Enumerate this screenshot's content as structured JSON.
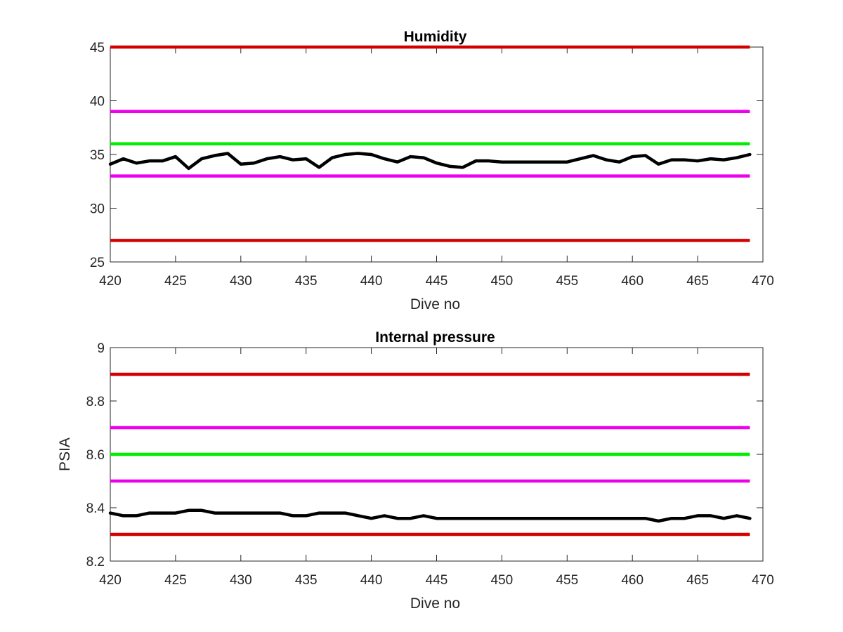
{
  "chart_data": [
    {
      "type": "line",
      "title": "Humidity",
      "xlabel": "Dive no",
      "ylabel": "",
      "xlim": [
        420,
        470
      ],
      "ylim": [
        25,
        45
      ],
      "xticks": [
        420,
        425,
        430,
        435,
        440,
        445,
        450,
        455,
        460,
        465,
        470
      ],
      "yticks": [
        25,
        30,
        35,
        40,
        45
      ],
      "grid": false,
      "legend": "none",
      "reference_lines": [
        {
          "y": 45,
          "x": [
            420,
            469
          ],
          "color": "#d40000"
        },
        {
          "y": 39,
          "x": [
            420,
            469
          ],
          "color": "#ee00ee"
        },
        {
          "y": 36,
          "x": [
            420,
            469
          ],
          "color": "#00ee00"
        },
        {
          "y": 33,
          "x": [
            420,
            469
          ],
          "color": "#ee00ee"
        },
        {
          "y": 27,
          "x": [
            420,
            469
          ],
          "color": "#d40000"
        }
      ],
      "series": [
        {
          "color": "#000000",
          "x": [
            420,
            421,
            422,
            423,
            424,
            425,
            426,
            427,
            428,
            429,
            430,
            431,
            432,
            433,
            434,
            435,
            436,
            437,
            438,
            439,
            440,
            441,
            442,
            443,
            444,
            445,
            446,
            447,
            448,
            449,
            450,
            451,
            452,
            453,
            454,
            455,
            456,
            457,
            458,
            459,
            460,
            461,
            462,
            463,
            464,
            465,
            466,
            467,
            468,
            469
          ],
          "values": [
            34.1,
            34.6,
            34.2,
            34.4,
            34.4,
            34.8,
            33.7,
            34.6,
            34.9,
            35.1,
            34.1,
            34.2,
            34.6,
            34.8,
            34.5,
            34.6,
            33.8,
            34.7,
            35.0,
            35.1,
            35.0,
            34.6,
            34.3,
            34.8,
            34.7,
            34.2,
            33.9,
            33.8,
            34.4,
            34.4,
            34.3,
            34.3,
            34.3,
            34.3,
            34.3,
            34.3,
            34.6,
            34.9,
            34.5,
            34.3,
            34.8,
            34.9,
            34.1,
            34.5,
            34.5,
            34.4,
            34.6,
            34.5,
            34.7,
            35.0
          ]
        }
      ]
    },
    {
      "type": "line",
      "title": "Internal pressure",
      "xlabel": "Dive no",
      "ylabel": "PSIA",
      "xlim": [
        420,
        470
      ],
      "ylim": [
        8.2,
        9
      ],
      "xticks": [
        420,
        425,
        430,
        435,
        440,
        445,
        450,
        455,
        460,
        465,
        470
      ],
      "yticks": [
        "8.2",
        "8.4",
        "8.6",
        "8.8",
        "9"
      ],
      "grid": false,
      "legend": "none",
      "reference_lines": [
        {
          "y": 8.9,
          "x": [
            420,
            469
          ],
          "color": "#d40000"
        },
        {
          "y": 8.7,
          "x": [
            420,
            469
          ],
          "color": "#ee00ee"
        },
        {
          "y": 8.6,
          "x": [
            420,
            469
          ],
          "color": "#00ee00"
        },
        {
          "y": 8.5,
          "x": [
            420,
            469
          ],
          "color": "#ee00ee"
        },
        {
          "y": 8.3,
          "x": [
            420,
            469
          ],
          "color": "#d40000"
        }
      ],
      "series": [
        {
          "color": "#000000",
          "x": [
            420,
            421,
            422,
            423,
            424,
            425,
            426,
            427,
            428,
            429,
            430,
            431,
            432,
            433,
            434,
            435,
            436,
            437,
            438,
            439,
            440,
            441,
            442,
            443,
            444,
            445,
            446,
            447,
            448,
            449,
            450,
            451,
            452,
            453,
            454,
            455,
            456,
            457,
            458,
            459,
            460,
            461,
            462,
            463,
            464,
            465,
            466,
            467,
            468,
            469
          ],
          "values": [
            8.38,
            8.37,
            8.37,
            8.38,
            8.38,
            8.38,
            8.39,
            8.39,
            8.38,
            8.38,
            8.38,
            8.38,
            8.38,
            8.38,
            8.37,
            8.37,
            8.38,
            8.38,
            8.38,
            8.37,
            8.36,
            8.37,
            8.36,
            8.36,
            8.37,
            8.36,
            8.36,
            8.36,
            8.36,
            8.36,
            8.36,
            8.36,
            8.36,
            8.36,
            8.36,
            8.36,
            8.36,
            8.36,
            8.36,
            8.36,
            8.36,
            8.36,
            8.35,
            8.36,
            8.36,
            8.37,
            8.37,
            8.36,
            8.37,
            8.36
          ]
        }
      ]
    }
  ]
}
